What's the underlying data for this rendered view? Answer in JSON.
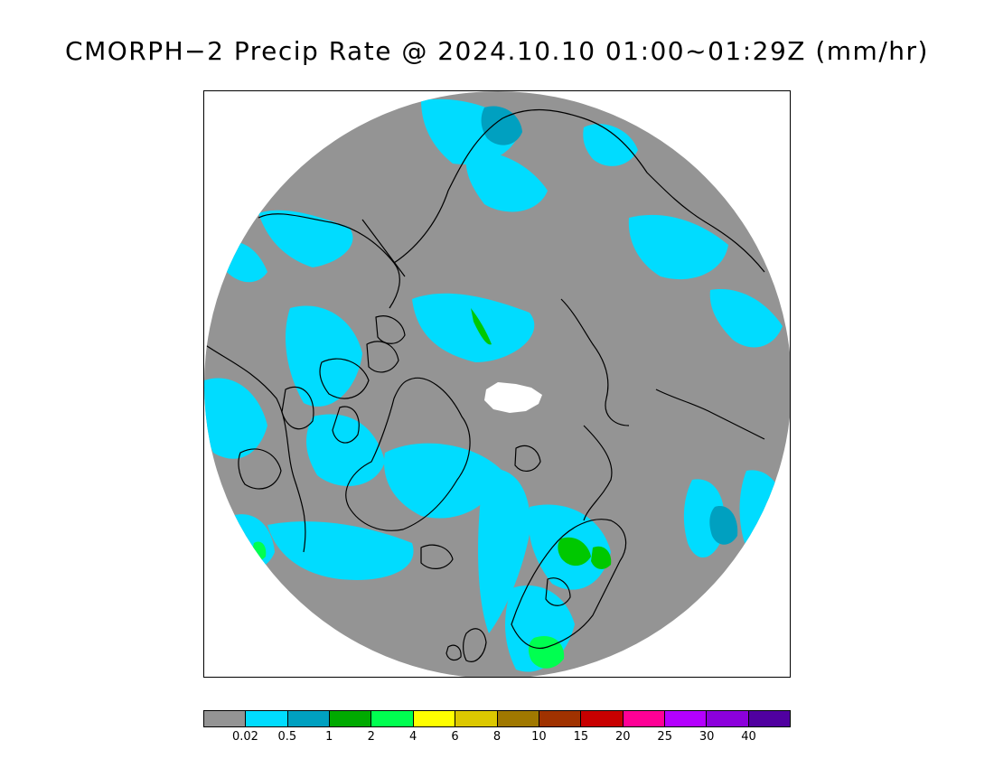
{
  "title": "CMORPH−2 Precip Rate @ 2024.10.10 01:00~01:29Z (mm/hr)",
  "map": {
    "projection": "north-polar-stereographic",
    "background_color": "#949494",
    "light_precip_color": "#00dcff",
    "mid_precip_color": "#00a0c0",
    "green_color": "#00c800",
    "bright_green_color": "#00ff50",
    "no_data_color": "#ffffff",
    "coastline_color": "#000000"
  },
  "colorbar": {
    "colors": [
      "#949494",
      "#00dcff",
      "#00a0c0",
      "#00aa00",
      "#00ff50",
      "#ffff00",
      "#dcc800",
      "#a07800",
      "#a03200",
      "#c80000",
      "#ff0096",
      "#b400ff",
      "#8c00dc",
      "#5000a0"
    ],
    "labels": [
      "0.02",
      "0.5",
      "1",
      "2",
      "4",
      "6",
      "8",
      "10",
      "15",
      "20",
      "25",
      "30",
      "40"
    ]
  }
}
